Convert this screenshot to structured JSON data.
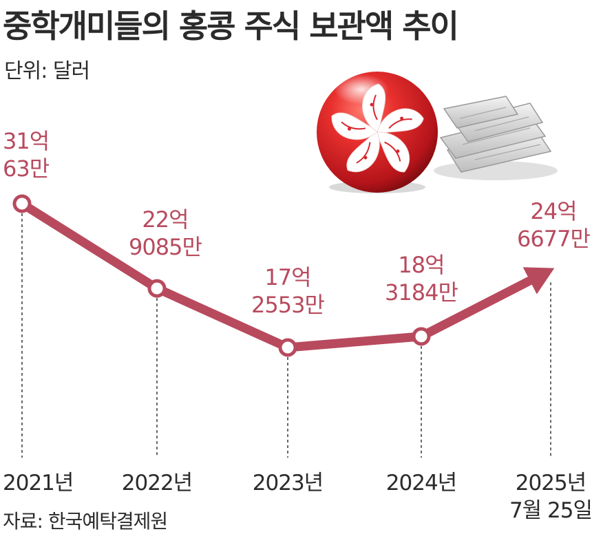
{
  "header": {
    "title": "중학개미들의 홍콩 주식 보관액 추이",
    "unit": "단위: 달러"
  },
  "footer": {
    "source": "자료: 한국예탁결제원"
  },
  "colors": {
    "line": "#b84a5e",
    "label": "#b84a5e",
    "text": "#2b2b2b",
    "flag_red": "#d7282f"
  },
  "illustration": {
    "icons": [
      "hong-kong-flag-ball-icon",
      "stock-papers-icon"
    ]
  },
  "chart_data": {
    "type": "line",
    "x": [
      "2021년",
      "2022년",
      "2023년",
      "2024년",
      "2025년 7월 25일"
    ],
    "series": [
      {
        "values": [
          3100630000,
          2290850000,
          1725530000,
          1831840000,
          2466770000
        ]
      }
    ],
    "value_labels": [
      [
        "31억",
        "63만"
      ],
      [
        "22억",
        "9085만"
      ],
      [
        "17억",
        "2553만"
      ],
      [
        "18억",
        "3184만"
      ],
      [
        "24억",
        "6677만"
      ]
    ],
    "x_tick_labels": [
      [
        "2021년"
      ],
      [
        "2022년"
      ],
      [
        "2023년"
      ],
      [
        "2024년"
      ],
      [
        "2025년",
        "7월 25일"
      ]
    ],
    "title": "중학개미들의 홍콩 주식 보관액 추이",
    "ylabel": "단위: 달러",
    "grid": false,
    "ylim": [
      0,
      3300000000
    ]
  }
}
